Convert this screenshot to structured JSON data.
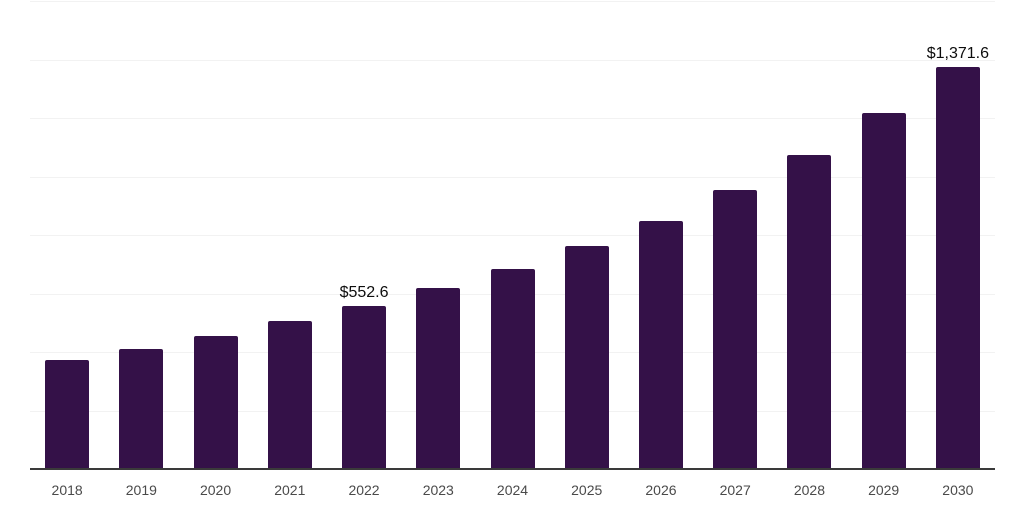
{
  "chart": {
    "background_color": "#ffffff",
    "bar_color": "#341148",
    "gridline_color": "#f2f2f2",
    "axis_line_color": "#3a3a3a",
    "tick_label_color": "#4a4a4a",
    "value_label_color": "#0d0d0d"
  },
  "chart_data": {
    "type": "bar",
    "title": "",
    "xlabel": "",
    "ylabel": "",
    "categories": [
      "2018",
      "2019",
      "2020",
      "2021",
      "2022",
      "2023",
      "2024",
      "2025",
      "2026",
      "2027",
      "2028",
      "2029",
      "2030"
    ],
    "values": [
      370,
      406,
      451,
      501,
      552.6,
      614,
      682,
      759,
      845,
      949,
      1071,
      1213,
      1371.6
    ],
    "labeled_points": [
      {
        "category": "2022",
        "label": "$552.6"
      },
      {
        "category": "2030",
        "label": "$1,371.6"
      }
    ],
    "ylim": [
      0,
      1600
    ],
    "gridline_step": 200,
    "y_tick_labels_visible": false,
    "grid": "horizontal",
    "legend": "none"
  }
}
